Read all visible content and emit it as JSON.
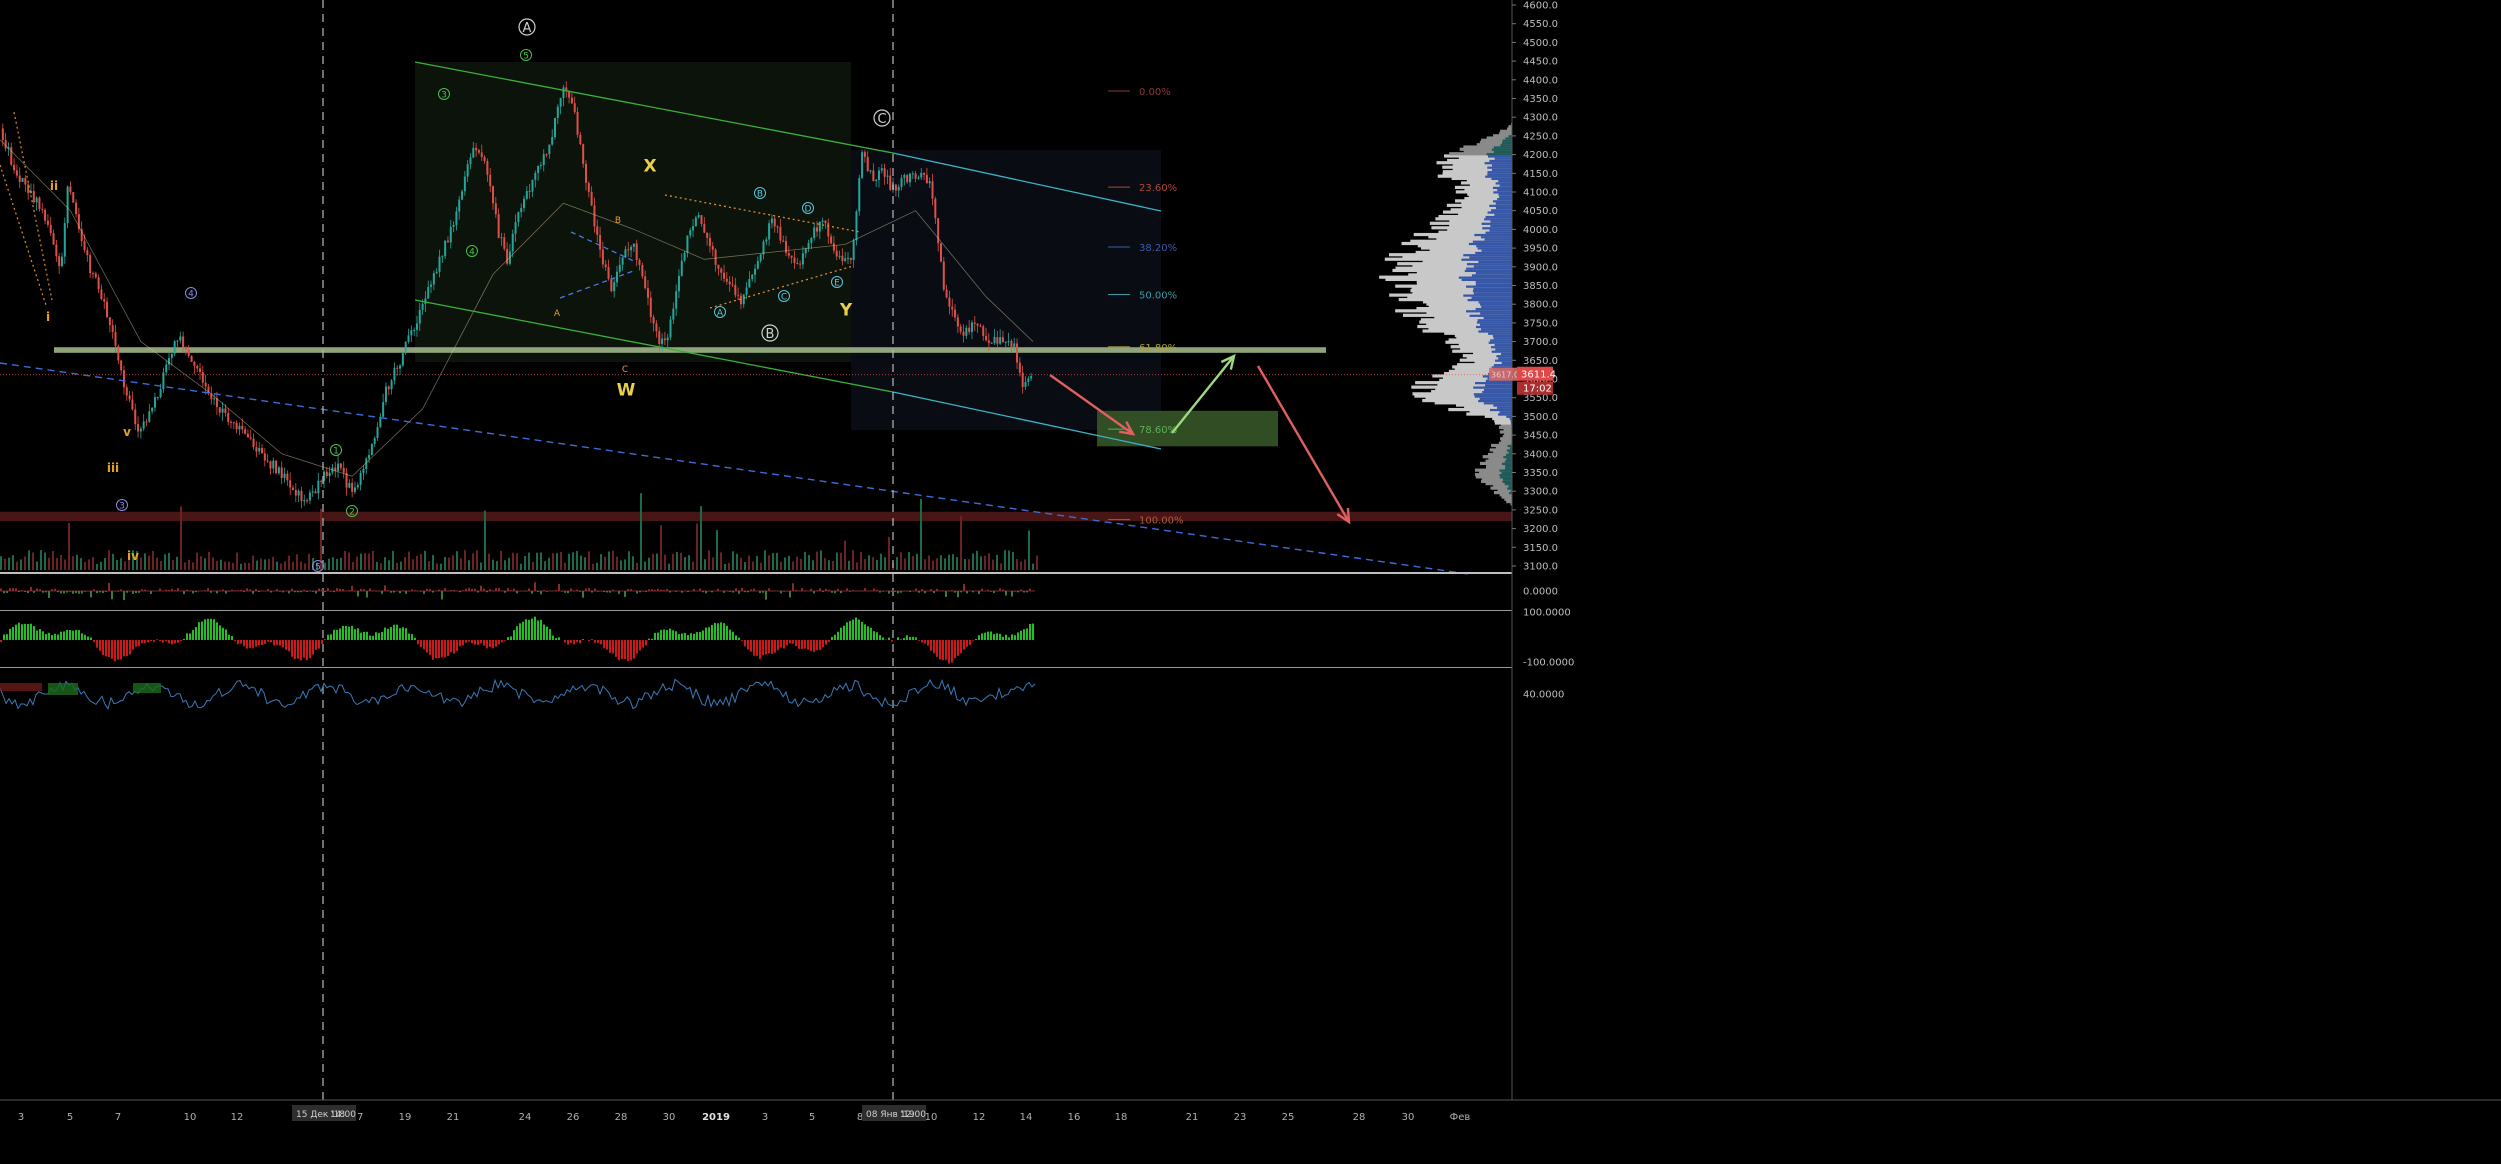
{
  "chart_data": {
    "type": "candlestick",
    "price_axis": {
      "ylim": [
        3080,
        4620
      ],
      "tick_labels": [
        "3100.0",
        "3150.0",
        "3200.0",
        "3250.0",
        "3300.0",
        "3350.0",
        "3400.0",
        "3450.0",
        "3500.0",
        "3550.0",
        "3600.0",
        "3650.0",
        "3700.0",
        "3750.0",
        "3800.0",
        "3850.0",
        "3900.0",
        "3950.0",
        "4000.0",
        "4050.0",
        "4100.0",
        "4150.0",
        "4200.0",
        "4250.0",
        "4300.0",
        "4350.0",
        "4400.0",
        "4450.0",
        "4500.0",
        "4550.0",
        "4600.0"
      ],
      "current_price": "3611.4",
      "countdown": "17:02",
      "ghost_price": "3617.05"
    },
    "time_axis": {
      "tick_labels": [
        "3",
        "5",
        "7",
        "10",
        "12",
        "14",
        "17",
        "19",
        "21",
        "24",
        "26",
        "28",
        "30",
        "2019",
        "3",
        "5",
        "8",
        "10",
        "12",
        "14",
        "16",
        "18",
        "21",
        "23",
        "25",
        "28",
        "30",
        "Фев"
      ],
      "cursor_labels": [
        "15 Дек '18",
        "14:00",
        "08 Янв '19",
        "12:00"
      ]
    },
    "price_path": [
      [
        0.0,
        4270
      ],
      [
        0.5,
        4180
      ],
      [
        1.0,
        4120
      ],
      [
        1.5,
        4080
      ],
      [
        2.0,
        4010
      ],
      [
        2.6,
        3880
      ],
      [
        2.9,
        4140
      ],
      [
        3.3,
        4020
      ],
      [
        3.8,
        3900
      ],
      [
        4.3,
        3830
      ],
      [
        4.8,
        3720
      ],
      [
        5.4,
        3560
      ],
      [
        5.9,
        3450
      ],
      [
        6.4,
        3510
      ],
      [
        7.0,
        3610
      ],
      [
        7.6,
        3720
      ],
      [
        8.1,
        3660
      ],
      [
        8.6,
        3600
      ],
      [
        9.2,
        3530
      ],
      [
        9.8,
        3490
      ],
      [
        10.5,
        3450
      ],
      [
        11.0,
        3410
      ],
      [
        11.6,
        3370
      ],
      [
        12.2,
        3330
      ],
      [
        12.8,
        3280
      ],
      [
        13.3,
        3290
      ],
      [
        13.8,
        3340
      ],
      [
        14.4,
        3360
      ],
      [
        15.0,
        3300
      ],
      [
        15.6,
        3380
      ],
      [
        16.0,
        3460
      ],
      [
        16.5,
        3580
      ],
      [
        17.0,
        3640
      ],
      [
        17.5,
        3720
      ],
      [
        18.0,
        3790
      ],
      [
        18.4,
        3860
      ],
      [
        18.9,
        3950
      ],
      [
        19.4,
        4020
      ],
      [
        19.8,
        4150
      ],
      [
        20.3,
        4230
      ],
      [
        20.8,
        4140
      ],
      [
        21.2,
        4000
      ],
      [
        21.6,
        3920
      ],
      [
        22.1,
        4060
      ],
      [
        22.6,
        4120
      ],
      [
        23.1,
        4180
      ],
      [
        23.5,
        4250
      ],
      [
        24.0,
        4380
      ],
      [
        24.5,
        4300
      ],
      [
        25.0,
        4110
      ],
      [
        25.5,
        3960
      ],
      [
        26.0,
        3840
      ],
      [
        26.4,
        3920
      ],
      [
        26.9,
        3970
      ],
      [
        27.3,
        3890
      ],
      [
        27.7,
        3780
      ],
      [
        28.1,
        3700
      ],
      [
        28.5,
        3720
      ],
      [
        28.9,
        3880
      ],
      [
        29.4,
        4010
      ],
      [
        29.8,
        4040
      ],
      [
        30.3,
        3940
      ],
      [
        30.8,
        3880
      ],
      [
        31.2,
        3840
      ],
      [
        31.6,
        3800
      ],
      [
        32.1,
        3890
      ],
      [
        32.5,
        3960
      ],
      [
        32.9,
        4030
      ],
      [
        33.4,
        3960
      ],
      [
        33.8,
        3900
      ],
      [
        34.2,
        3930
      ],
      [
        34.6,
        3990
      ],
      [
        35.1,
        4020
      ],
      [
        35.5,
        3950
      ],
      [
        35.9,
        3910
      ],
      [
        36.3,
        3930
      ],
      [
        36.7,
        4200
      ],
      [
        37.2,
        4130
      ],
      [
        37.6,
        4160
      ],
      [
        38.0,
        4110
      ],
      [
        38.4,
        4130
      ],
      [
        38.8,
        4140
      ],
      [
        39.3,
        4160
      ],
      [
        39.7,
        4100
      ],
      [
        40.2,
        3850
      ],
      [
        40.6,
        3780
      ],
      [
        41.0,
        3720
      ],
      [
        41.5,
        3750
      ],
      [
        41.9,
        3720
      ],
      [
        42.4,
        3700
      ],
      [
        42.8,
        3700
      ],
      [
        43.2,
        3680
      ],
      [
        43.6,
        3580
      ],
      [
        44.0,
        3611
      ]
    ],
    "moving_average_path": [
      [
        0.0,
        4240
      ],
      [
        3.0,
        4050
      ],
      [
        6.0,
        3700
      ],
      [
        9.0,
        3560
      ],
      [
        12.0,
        3400
      ],
      [
        15.0,
        3340
      ],
      [
        18.0,
        3520
      ],
      [
        21.0,
        3880
      ],
      [
        24.0,
        4070
      ],
      [
        27.0,
        4000
      ],
      [
        30.0,
        3920
      ],
      [
        33.0,
        3940
      ],
      [
        36.0,
        3960
      ],
      [
        39.0,
        4050
      ],
      [
        42.0,
        3820
      ],
      [
        44.0,
        3700
      ]
    ],
    "fibonacci_levels": [
      {
        "label": "0.00%",
        "price": 4370,
        "color": "#8a3a3a"
      },
      {
        "label": "23.60%",
        "price": 4113,
        "color": "#b0473a"
      },
      {
        "label": "38.20%",
        "price": 3953,
        "color": "#3d5aa8"
      },
      {
        "label": "50.00%",
        "price": 3826,
        "color": "#3a9aa8"
      },
      {
        "label": "61.80%",
        "price": 3686,
        "color": "#b0a040"
      },
      {
        "label": "78.60%",
        "price": 3466,
        "color": "#5ab05a"
      },
      {
        "label": "100.00%",
        "price": 3224,
        "color": "#b05a3a"
      }
    ],
    "wave_labels": [
      {
        "text": "A",
        "style": "circle-lg",
        "color": "#cfcfcf"
      },
      {
        "text": "C",
        "style": "circle-lg",
        "color": "#cfcfcf"
      },
      {
        "text": "B",
        "style": "circle-lg",
        "color": "#cfcfcf"
      },
      {
        "text": "5",
        "style": "circle",
        "color": "#49c149"
      },
      {
        "text": "3",
        "style": "circle",
        "color": "#49c149"
      },
      {
        "text": "4",
        "style": "circle",
        "color": "#49c149"
      },
      {
        "text": "1",
        "style": "circle",
        "color": "#49c149"
      },
      {
        "text": "2",
        "style": "circle",
        "color": "#49c149"
      },
      {
        "text": "4",
        "style": "circle",
        "color": "#8a8ae0"
      },
      {
        "text": "3",
        "style": "circle",
        "color": "#8a8ae0"
      },
      {
        "text": "5",
        "style": "circle",
        "color": "#8a8ae0"
      },
      {
        "text": "B",
        "style": "circle",
        "color": "#5ac8d8"
      },
      {
        "text": "D",
        "style": "circle",
        "color": "#5ac8d8"
      },
      {
        "text": "A",
        "style": "circle",
        "color": "#5ac8d8"
      },
      {
        "text": "C",
        "style": "circle",
        "color": "#5ac8d8"
      },
      {
        "text": "E",
        "style": "circle",
        "color": "#5ac8d8"
      },
      {
        "text": "X",
        "style": "text-lg",
        "color": "#e8d048"
      },
      {
        "text": "W",
        "style": "text-lg",
        "color": "#e8d048"
      },
      {
        "text": "Y",
        "style": "text-lg",
        "color": "#e8d048"
      },
      {
        "text": "B",
        "style": "text-sm",
        "color": "#e89a30"
      },
      {
        "text": "A",
        "style": "text-sm",
        "color": "#e89a30"
      },
      {
        "text": "C",
        "style": "text-sm",
        "color": "#e89a30"
      },
      {
        "text": "ii",
        "style": "text-md",
        "color": "#e8a020"
      },
      {
        "text": "i",
        "style": "text-md",
        "color": "#e8a020"
      },
      {
        "text": "v",
        "style": "text-md",
        "color": "#e8a020"
      },
      {
        "text": "iii",
        "style": "text-md",
        "color": "#e8a020"
      },
      {
        "text": "iv",
        "style": "text-md",
        "color": "#e8a020"
      }
    ],
    "oscillators": [
      {
        "tick_labels": [
          "0.0000"
        ]
      },
      {
        "tick_labels": [
          "100.0000",
          "-100.0000"
        ]
      },
      {
        "tick_labels": [
          "40.0000"
        ]
      }
    ],
    "colors": {
      "background": "#000000",
      "up": "#26a69a",
      "down": "#e0504a",
      "channel": "#3bb03b",
      "channel_ext": "#3cb4c8",
      "support_band": "#a8c090",
      "resistance_band": "#5a1c1c",
      "trendline": "#3d6cd8",
      "volume_profile": "#c8c8c8",
      "value_area": "#3656a8"
    }
  }
}
